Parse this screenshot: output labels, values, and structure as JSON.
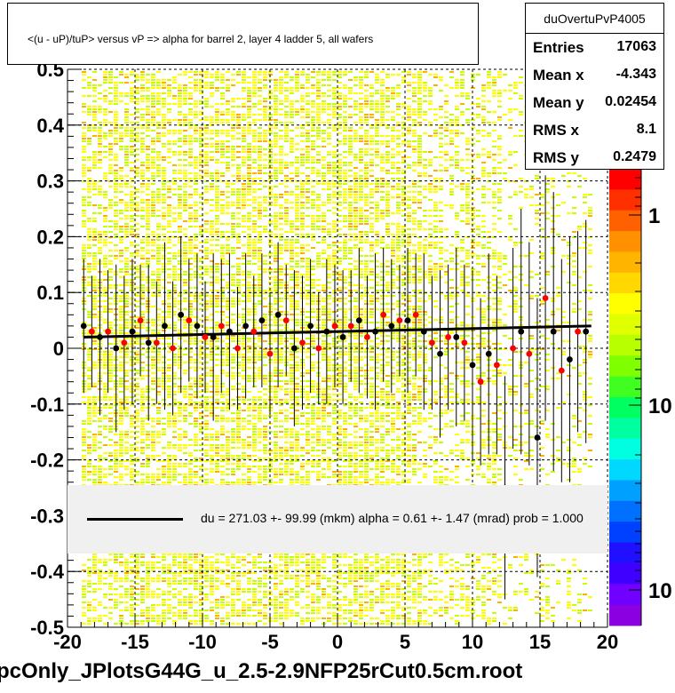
{
  "title": "<(u - uP)/tuP> versus   vP => alpha for barrel 2, layer 4 ladder 5, all wafers",
  "stats": {
    "name": "duOvertuPvP4005",
    "rows": [
      {
        "label": "Entries",
        "value": "17063"
      },
      {
        "label": "Mean x",
        "value": "-4.343"
      },
      {
        "label": "Mean y",
        "value": "0.02454"
      },
      {
        "label": "RMS x",
        "value": "8.1"
      },
      {
        "label": "RMS y",
        "value": "0.2479"
      }
    ]
  },
  "fit_text": "du =  271.03 +- 99.99 (mkm) alpha =    0.61 +-  1.47 (mrad) prob = 1.000",
  "footer": "pcOnly_JPlotsG44G_u_2.5-2.9NFP25rCut0.5cm.root",
  "colors": {
    "hist_yellow": "#ffff00",
    "hist_lime": "#c8ff00",
    "hist_orange": "#ffb000",
    "marker_black": "#000000",
    "marker_red": "#ff0000",
    "fit_line": "#000000"
  },
  "chart_data": {
    "type": "scatter",
    "x_ticks": [
      "-20",
      "-15",
      "-10",
      "-5",
      "0",
      "5",
      "10",
      "15",
      "20"
    ],
    "y_ticks": [
      "-0.5",
      "-0.4",
      "-0.3",
      "-0.2",
      "-0.1",
      "0",
      "0.1",
      "0.2",
      "0.3",
      "0.4",
      "0.5"
    ],
    "xlim": [
      -20,
      20
    ],
    "ylim": [
      -0.5,
      0.5
    ],
    "grid": true,
    "colorbar": {
      "scale": "log",
      "tick_labels": [
        "1",
        "10",
        "10"
      ]
    },
    "fit_line": {
      "x": [
        -18.8,
        18.8
      ],
      "y": [
        0.02,
        0.04
      ]
    },
    "series": [
      {
        "color": "black",
        "x": [
          -18.8,
          -17.6,
          -16.4,
          -15.2,
          -14.0,
          -12.8,
          -11.6,
          -10.4,
          -9.2,
          -8.0,
          -6.8,
          -5.6,
          -4.4,
          -3.2,
          -2.0,
          -0.8,
          0.4,
          1.6,
          2.8,
          4.0,
          5.2,
          6.4,
          7.6,
          8.8,
          10.0,
          11.2,
          12.4,
          13.6,
          14.8,
          16.0,
          17.2,
          18.4
        ],
        "y": [
          0.04,
          0.02,
          0.0,
          0.03,
          0.01,
          0.04,
          0.06,
          0.04,
          0.02,
          0.03,
          0.04,
          0.05,
          0.06,
          0.0,
          0.04,
          0.03,
          0.02,
          0.05,
          0.03,
          0.04,
          0.05,
          0.03,
          -0.01,
          0.02,
          -0.03,
          -0.01,
          -0.25,
          0.03,
          -0.16,
          0.03,
          -0.02,
          0.03
        ],
        "yerr": [
          0.12,
          0.14,
          0.15,
          0.13,
          0.14,
          0.15,
          0.14,
          0.13,
          0.15,
          0.14,
          0.13,
          0.12,
          0.13,
          0.14,
          0.12,
          0.13,
          0.12,
          0.13,
          0.14,
          0.12,
          0.13,
          0.14,
          0.15,
          0.16,
          0.17,
          0.18,
          0.2,
          0.22,
          0.25,
          0.25,
          0.22,
          0.2
        ]
      },
      {
        "color": "red",
        "x": [
          -18.2,
          -17.0,
          -15.8,
          -14.6,
          -13.4,
          -12.2,
          -11.0,
          -9.8,
          -8.6,
          -7.4,
          -6.2,
          -5.0,
          -3.8,
          -2.6,
          -1.4,
          -0.2,
          1.0,
          2.2,
          3.4,
          4.6,
          5.8,
          7.0,
          8.2,
          9.4,
          10.6,
          11.8,
          13.0,
          14.2,
          15.4,
          16.6,
          17.8
        ],
        "y": [
          0.03,
          0.03,
          0.01,
          0.05,
          0.01,
          0.0,
          0.05,
          0.02,
          0.04,
          0.0,
          0.03,
          -0.01,
          0.05,
          0.01,
          0.0,
          0.04,
          0.04,
          0.02,
          0.06,
          0.05,
          0.06,
          0.01,
          0.02,
          0.01,
          -0.06,
          -0.03,
          0.0,
          -0.01,
          0.09,
          -0.04,
          0.03
        ],
        "yerr": [
          0.1,
          0.11,
          0.12,
          0.1,
          0.11,
          0.12,
          0.11,
          0.1,
          0.12,
          0.11,
          0.1,
          0.11,
          0.1,
          0.12,
          0.1,
          0.11,
          0.1,
          0.11,
          0.12,
          0.1,
          0.11,
          0.12,
          0.13,
          0.14,
          0.15,
          0.16,
          0.18,
          0.2,
          0.22,
          0.2,
          0.18
        ]
      }
    ]
  }
}
